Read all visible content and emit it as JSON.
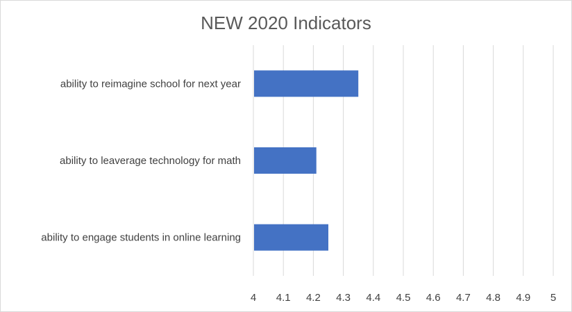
{
  "chart_data": {
    "type": "bar",
    "orientation": "horizontal",
    "title": "NEW 2020 Indicators",
    "categories": [
      "ability to reimagine school for next year",
      "ability to leaverage technology for math",
      "ability to engage students in online learning"
    ],
    "values": [
      4.35,
      4.21,
      4.25
    ],
    "xlim": [
      4,
      5
    ],
    "x_ticks": [
      "4",
      "4.1",
      "4.2",
      "4.3",
      "4.4",
      "4.5",
      "4.6",
      "4.7",
      "4.8",
      "4.9",
      "5"
    ],
    "grid": "vertical",
    "legend": "none",
    "bar_color": "#4472c4"
  }
}
